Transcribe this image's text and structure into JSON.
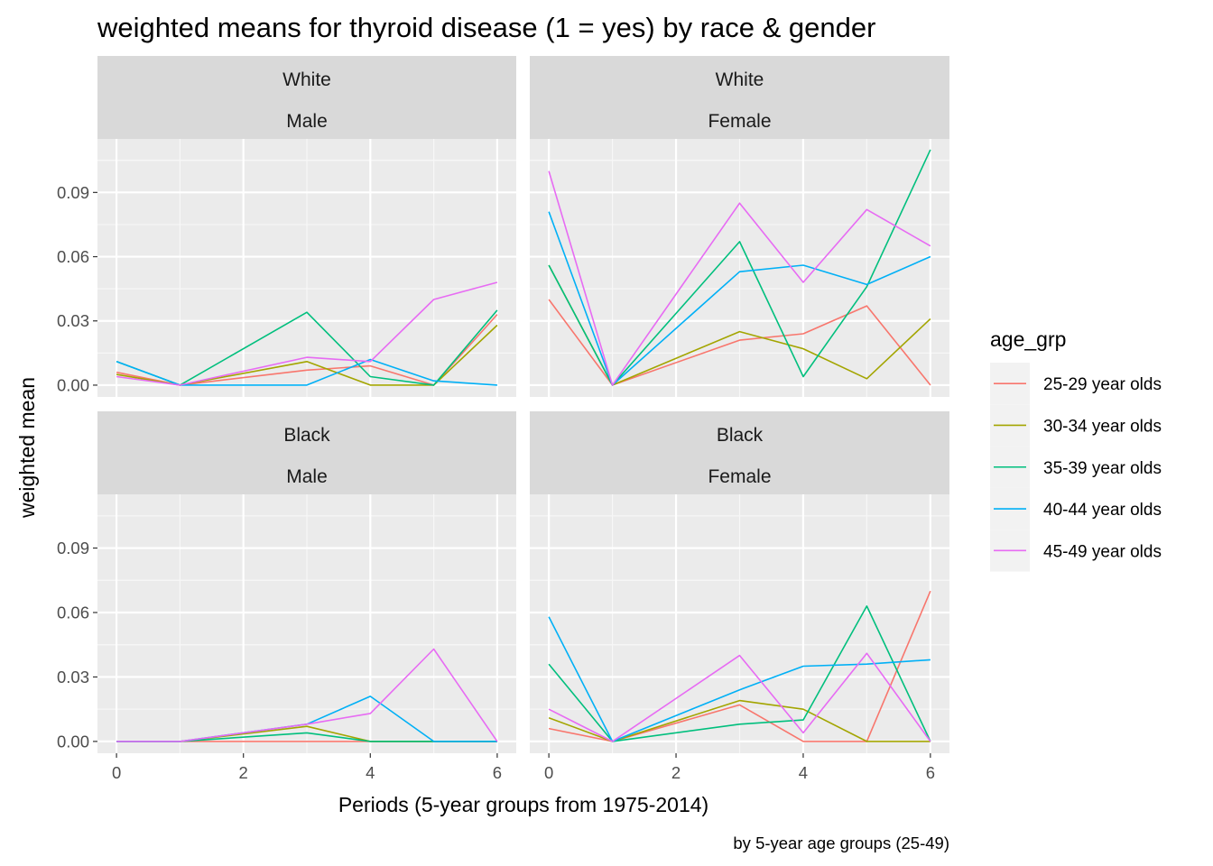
{
  "chart_data": {
    "type": "line",
    "title": "weighted means for thyroid disease (1 = yes) by race & gender",
    "xlabel": "Periods (5-year groups from 1975-2014)",
    "ylabel": "weighted mean",
    "caption": "by 5-year age groups (25-49)",
    "x": [
      0,
      1,
      2,
      3,
      4,
      5,
      6
    ],
    "x_ticks": [
      0,
      2,
      4,
      6
    ],
    "x_tick_labels": [
      "0",
      "2",
      "4",
      "6"
    ],
    "y_ticks": [
      0,
      0.03,
      0.06,
      0.09
    ],
    "y_tick_labels": [
      "0.00",
      "0.03",
      "0.06",
      "0.09"
    ],
    "xlim": [
      -0.3,
      6.3
    ],
    "ylim": [
      -0.0055,
      0.115
    ],
    "grid": true,
    "legend": {
      "title": "age_grp",
      "position": "right",
      "entries": [
        "25-29 year olds",
        "30-34 year olds",
        "35-39 year olds",
        "40-44 year olds",
        "45-49 year olds"
      ],
      "colors": [
        "#F8766D",
        "#A3A500",
        "#00BF7D",
        "#00B0F6",
        "#E76BF3"
      ]
    },
    "panels": [
      {
        "strip_race": "White",
        "strip_gender": "Male",
        "x": [
          0,
          1,
          3,
          4,
          5,
          6
        ],
        "series": [
          {
            "name": "25-29 year olds",
            "values": [
              0.006,
              0.0,
              0.007,
              0.009,
              0.0,
              0.033
            ]
          },
          {
            "name": "30-34 year olds",
            "values": [
              0.005,
              0.0,
              0.011,
              0.0,
              0.0,
              0.028
            ]
          },
          {
            "name": "35-39 year olds",
            "values": [
              0.011,
              0.0,
              0.034,
              0.004,
              0.0,
              0.035
            ]
          },
          {
            "name": "40-44 year olds",
            "values": [
              0.011,
              0.0,
              0.0,
              0.012,
              0.002,
              0.0
            ]
          },
          {
            "name": "45-49 year olds",
            "values": [
              0.004,
              0.0,
              0.013,
              0.011,
              0.04,
              0.048
            ]
          }
        ]
      },
      {
        "strip_race": "White",
        "strip_gender": "Female",
        "x": [
          0,
          1,
          3,
          4,
          5,
          6
        ],
        "series": [
          {
            "name": "25-29 year olds",
            "values": [
              0.04,
              0.0,
              0.021,
              0.024,
              0.037,
              0.0
            ]
          },
          {
            "name": "30-34 year olds",
            "values": [
              0.056,
              0.0,
              0.025,
              0.017,
              0.003,
              0.031
            ]
          },
          {
            "name": "35-39 year olds",
            "values": [
              0.056,
              0.0,
              0.067,
              0.004,
              0.046,
              0.11
            ]
          },
          {
            "name": "40-44 year olds",
            "values": [
              0.081,
              0.0,
              0.053,
              0.056,
              0.047,
              0.06
            ]
          },
          {
            "name": "45-49 year olds",
            "values": [
              0.1,
              0.0,
              0.085,
              0.048,
              0.082,
              0.065
            ]
          }
        ]
      },
      {
        "strip_race": "Black",
        "strip_gender": "Male",
        "x": [
          0,
          1,
          3,
          4,
          5,
          6
        ],
        "series": [
          {
            "name": "25-29 year olds",
            "values": [
              0.0,
              0.0,
              0.0,
              0.0,
              0.0,
              0.0
            ]
          },
          {
            "name": "30-34 year olds",
            "values": [
              0.0,
              0.0,
              0.007,
              0.0,
              0.0,
              0.0
            ]
          },
          {
            "name": "35-39 year olds",
            "values": [
              0.0,
              0.0,
              0.004,
              0.0,
              0.0,
              0.0
            ]
          },
          {
            "name": "40-44 year olds",
            "values": [
              0.0,
              0.0,
              0.008,
              0.021,
              0.0,
              0.0
            ]
          },
          {
            "name": "45-49 year olds",
            "values": [
              0.0,
              0.0,
              0.008,
              0.013,
              0.043,
              0.0
            ]
          }
        ]
      },
      {
        "strip_race": "Black",
        "strip_gender": "Female",
        "x": [
          0,
          1,
          3,
          4,
          5,
          6
        ],
        "series": [
          {
            "name": "25-29 year olds",
            "values": [
              0.006,
              0.0,
              0.017,
              0.0,
              0.0,
              0.07
            ]
          },
          {
            "name": "30-34 year olds",
            "values": [
              0.011,
              0.0,
              0.019,
              0.015,
              0.0,
              0.0
            ]
          },
          {
            "name": "35-39 year olds",
            "values": [
              0.036,
              0.0,
              0.008,
              0.01,
              0.063,
              0.0
            ]
          },
          {
            "name": "40-44 year olds",
            "values": [
              0.058,
              0.0,
              0.024,
              0.035,
              0.036,
              0.038
            ]
          },
          {
            "name": "45-49 year olds",
            "values": [
              0.015,
              0.0,
              0.04,
              0.004,
              0.041,
              0.0
            ]
          }
        ]
      }
    ]
  }
}
